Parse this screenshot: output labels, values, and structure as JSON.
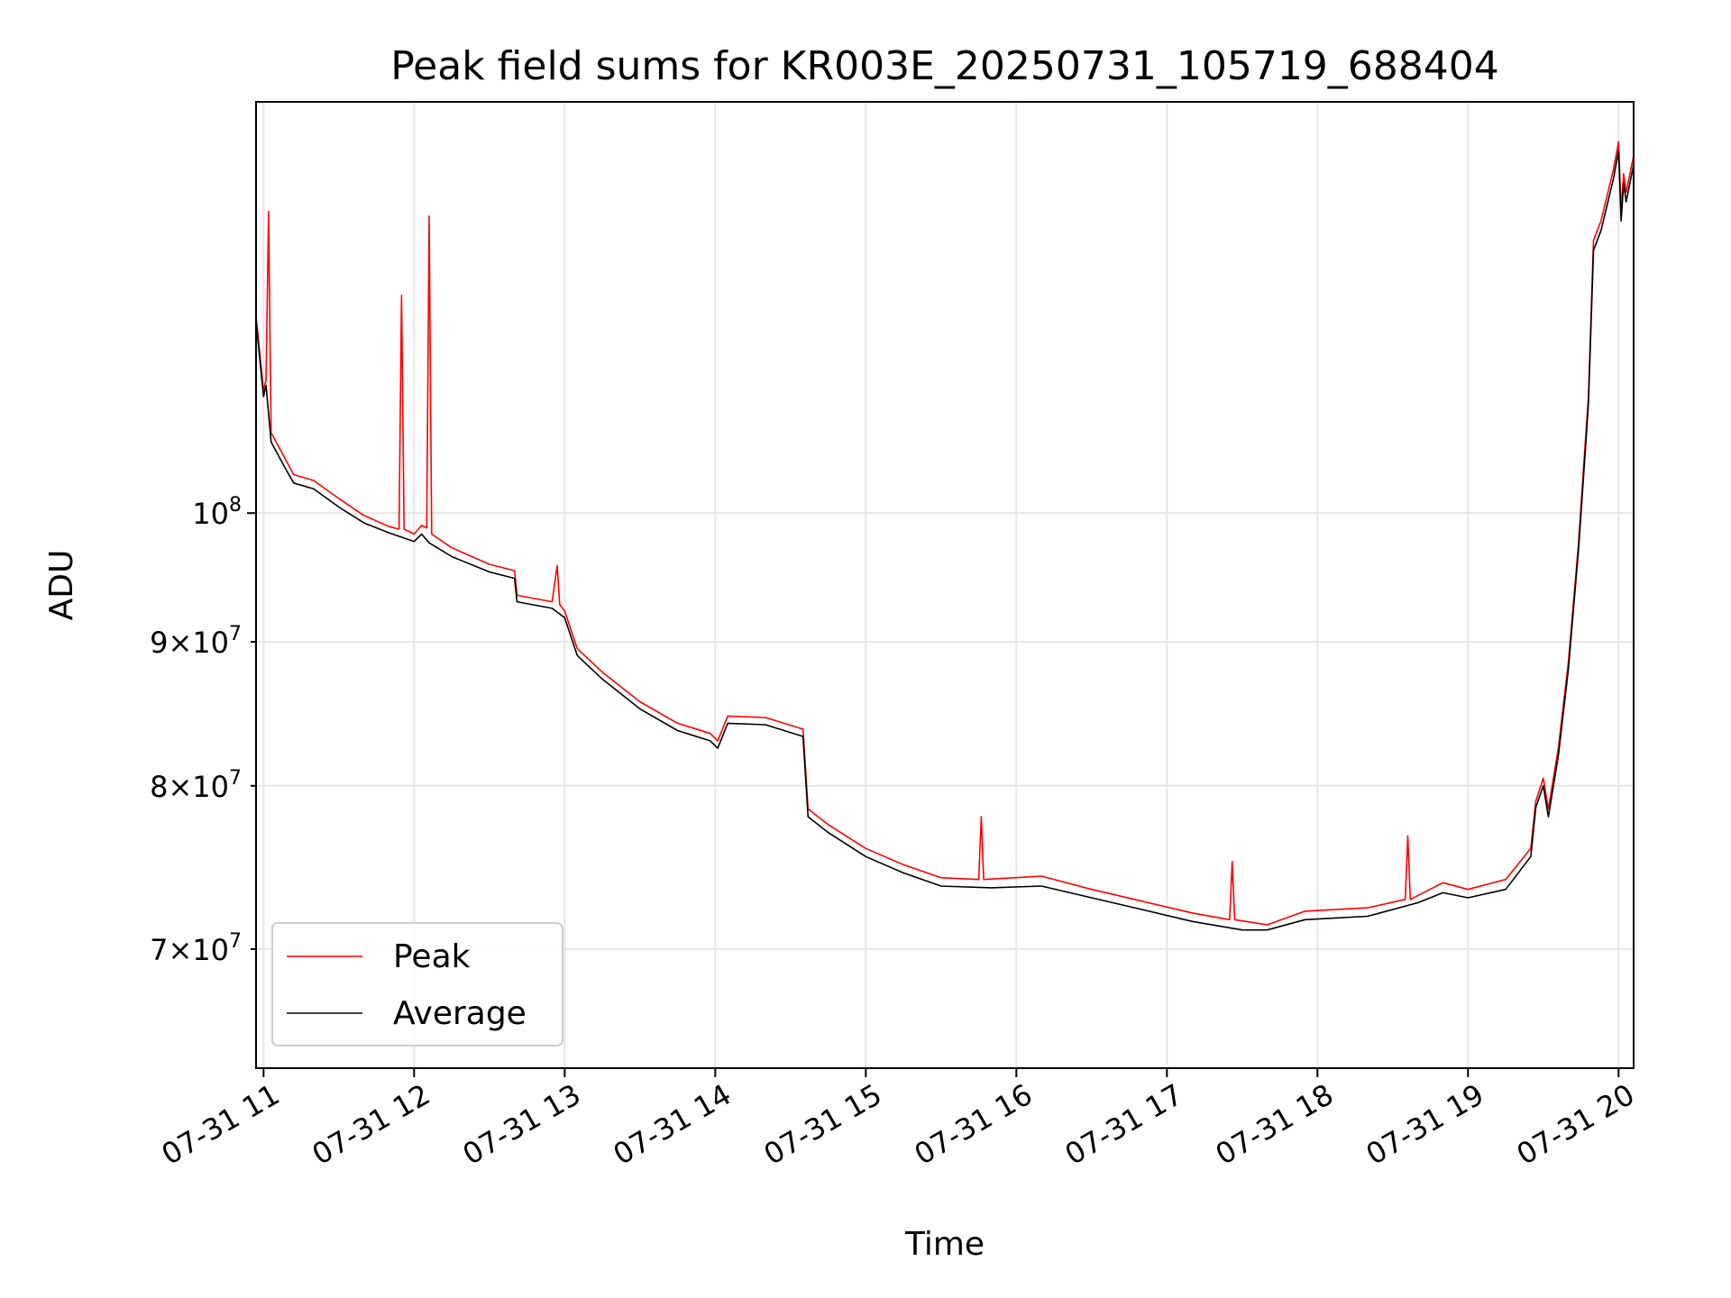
{
  "chart_data": {
    "type": "line",
    "title": "Peak field sums for KR003E_20250731_105719_688404",
    "xlabel": "Time",
    "ylabel": "ADU",
    "y_scale": "log",
    "ylim": [
      63500000,
      140000000
    ],
    "xlim": [
      "07-31 10:57",
      "07-31 20:06"
    ],
    "grid": true,
    "legend_position": "lower-left",
    "x_ticks": [
      {
        "t": "07-31 11:00",
        "label": "07-31 11"
      },
      {
        "t": "07-31 12:00",
        "label": "07-31 12"
      },
      {
        "t": "07-31 13:00",
        "label": "07-31 13"
      },
      {
        "t": "07-31 14:00",
        "label": "07-31 14"
      },
      {
        "t": "07-31 15:00",
        "label": "07-31 15"
      },
      {
        "t": "07-31 16:00",
        "label": "07-31 16"
      },
      {
        "t": "07-31 17:00",
        "label": "07-31 17"
      },
      {
        "t": "07-31 18:00",
        "label": "07-31 18"
      },
      {
        "t": "07-31 19:00",
        "label": "07-31 19"
      },
      {
        "t": "07-31 20:00",
        "label": "07-31 20"
      }
    ],
    "y_ticks": [
      {
        "v": 70000000,
        "mant": "7",
        "exp": "7",
        "major": false
      },
      {
        "v": 80000000,
        "mant": "8",
        "exp": "7",
        "major": false
      },
      {
        "v": 90000000,
        "mant": "9",
        "exp": "7",
        "major": false
      },
      {
        "v": 100000000,
        "mant": "",
        "exp": "8",
        "major": true
      }
    ],
    "series": [
      {
        "name": "Average",
        "color": "#000000",
        "points": [
          [
            "07-31 10:57",
            117000000
          ],
          [
            "07-31 11:00",
            110000000
          ],
          [
            "07-31 11:01",
            111000000
          ],
          [
            "07-31 11:03",
            106000000
          ],
          [
            "07-31 11:08",
            104000000
          ],
          [
            "07-31 11:12",
            102500000
          ],
          [
            "07-31 11:20",
            102000000
          ],
          [
            "07-31 11:30",
            100500000
          ],
          [
            "07-31 11:40",
            99200000
          ],
          [
            "07-31 11:50",
            98400000
          ],
          [
            "07-31 12:00",
            97700000
          ],
          [
            "07-31 12:03",
            98300000
          ],
          [
            "07-31 12:06",
            97600000
          ],
          [
            "07-31 12:15",
            96500000
          ],
          [
            "07-31 12:30",
            95300000
          ],
          [
            "07-31 12:40",
            94800000
          ],
          [
            "07-31 12:41",
            93000000
          ],
          [
            "07-31 12:55",
            92500000
          ],
          [
            "07-31 13:00",
            91800000
          ],
          [
            "07-31 13:05",
            89000000
          ],
          [
            "07-31 13:15",
            87300000
          ],
          [
            "07-31 13:30",
            85200000
          ],
          [
            "07-31 13:45",
            83700000
          ],
          [
            "07-31 13:58",
            83000000
          ],
          [
            "07-31 14:01",
            82500000
          ],
          [
            "07-31 14:05",
            84200000
          ],
          [
            "07-31 14:20",
            84100000
          ],
          [
            "07-31 14:35",
            83300000
          ],
          [
            "07-31 14:37",
            78000000
          ],
          [
            "07-31 14:45",
            77000000
          ],
          [
            "07-31 15:00",
            75500000
          ],
          [
            "07-31 15:15",
            74500000
          ],
          [
            "07-31 15:30",
            73700000
          ],
          [
            "07-31 15:50",
            73600000
          ],
          [
            "07-31 16:10",
            73700000
          ],
          [
            "07-31 16:30",
            73000000
          ],
          [
            "07-31 16:50",
            72300000
          ],
          [
            "07-31 17:10",
            71600000
          ],
          [
            "07-31 17:30",
            71100000
          ],
          [
            "07-31 17:40",
            71100000
          ],
          [
            "07-31 17:55",
            71700000
          ],
          [
            "07-31 18:20",
            71900000
          ],
          [
            "07-31 18:40",
            72700000
          ],
          [
            "07-31 18:50",
            73300000
          ],
          [
            "07-31 19:00",
            73000000
          ],
          [
            "07-31 19:15",
            73500000
          ],
          [
            "07-31 19:25",
            75500000
          ],
          [
            "07-31 19:27",
            78600000
          ],
          [
            "07-31 19:30",
            80000000
          ],
          [
            "07-31 19:32",
            78000000
          ],
          [
            "07-31 19:36",
            82000000
          ],
          [
            "07-31 19:40",
            88000000
          ],
          [
            "07-31 19:44",
            97000000
          ],
          [
            "07-31 19:47",
            106000000
          ],
          [
            "07-31 19:48",
            109500000
          ],
          [
            "07-31 19:50",
            124000000
          ],
          [
            "07-31 19:53",
            126000000
          ],
          [
            "07-31 19:58",
            131500000
          ],
          [
            "07-31 20:00",
            134500000
          ],
          [
            "07-31 20:01",
            127000000
          ],
          [
            "07-31 20:02",
            131000000
          ],
          [
            "07-31 20:03",
            129000000
          ],
          [
            "07-31 20:06",
            133000000
          ]
        ]
      },
      {
        "name": "Peak",
        "color": "#ff0000",
        "points": [
          [
            "07-31 10:57",
            117500000
          ],
          [
            "07-31 11:00",
            110500000
          ],
          [
            "07-31 11:01",
            111500000
          ],
          [
            "07-31 11:02",
            128000000
          ],
          [
            "07-31 11:03",
            106800000
          ],
          [
            "07-31 11:08",
            104800000
          ],
          [
            "07-31 11:12",
            103200000
          ],
          [
            "07-31 11:20",
            102700000
          ],
          [
            "07-31 11:30",
            101200000
          ],
          [
            "07-31 11:40",
            99800000
          ],
          [
            "07-31 11:50",
            98900000
          ],
          [
            "07-31 11:54",
            98700000
          ],
          [
            "07-31 11:55",
            119500000
          ],
          [
            "07-31 11:56",
            98700000
          ],
          [
            "07-31 12:00",
            98300000
          ],
          [
            "07-31 12:03",
            99000000
          ],
          [
            "07-31 12:05",
            98800000
          ],
          [
            "07-31 12:06",
            127500000
          ],
          [
            "07-31 12:07",
            98300000
          ],
          [
            "07-31 12:15",
            97200000
          ],
          [
            "07-31 12:30",
            95900000
          ],
          [
            "07-31 12:40",
            95400000
          ],
          [
            "07-31 12:41",
            93500000
          ],
          [
            "07-31 12:55",
            93000000
          ],
          [
            "07-31 12:57",
            95800000
          ],
          [
            "07-31 12:58",
            92800000
          ],
          [
            "07-31 13:00",
            92300000
          ],
          [
            "07-31 13:05",
            89500000
          ],
          [
            "07-31 13:15",
            87800000
          ],
          [
            "07-31 13:30",
            85700000
          ],
          [
            "07-31 13:45",
            84200000
          ],
          [
            "07-31 13:58",
            83500000
          ],
          [
            "07-31 14:01",
            83000000
          ],
          [
            "07-31 14:05",
            84700000
          ],
          [
            "07-31 14:20",
            84600000
          ],
          [
            "07-31 14:35",
            83800000
          ],
          [
            "07-31 14:37",
            78500000
          ],
          [
            "07-31 14:45",
            77500000
          ],
          [
            "07-31 15:00",
            76000000
          ],
          [
            "07-31 15:15",
            75000000
          ],
          [
            "07-31 15:30",
            74200000
          ],
          [
            "07-31 15:45",
            74100000
          ],
          [
            "07-31 15:46",
            78000000
          ],
          [
            "07-31 15:47",
            74100000
          ],
          [
            "07-31 16:10",
            74300000
          ],
          [
            "07-31 16:30",
            73500000
          ],
          [
            "07-31 16:50",
            72800000
          ],
          [
            "07-31 17:10",
            72100000
          ],
          [
            "07-31 17:25",
            71700000
          ],
          [
            "07-31 17:26",
            75200000
          ],
          [
            "07-31 17:27",
            71700000
          ],
          [
            "07-31 17:40",
            71400000
          ],
          [
            "07-31 17:55",
            72200000
          ],
          [
            "07-31 18:20",
            72400000
          ],
          [
            "07-31 18:35",
            72900000
          ],
          [
            "07-31 18:36",
            76800000
          ],
          [
            "07-31 18:37",
            72900000
          ],
          [
            "07-31 18:50",
            73900000
          ],
          [
            "07-31 19:00",
            73500000
          ],
          [
            "07-31 19:15",
            74100000
          ],
          [
            "07-31 19:25",
            76000000
          ],
          [
            "07-31 19:27",
            79000000
          ],
          [
            "07-31 19:30",
            80500000
          ],
          [
            "07-31 19:32",
            78500000
          ],
          [
            "07-31 19:36",
            82500000
          ],
          [
            "07-31 19:40",
            88500000
          ],
          [
            "07-31 19:44",
            97500000
          ],
          [
            "07-31 19:47",
            106800000
          ],
          [
            "07-31 19:48",
            110000000
          ],
          [
            "07-31 19:50",
            125000000
          ],
          [
            "07-31 19:53",
            127000000
          ],
          [
            "07-31 19:58",
            132500000
          ],
          [
            "07-31 20:00",
            135500000
          ],
          [
            "07-31 20:01",
            128000000
          ],
          [
            "07-31 20:02",
            132000000
          ],
          [
            "07-31 20:03",
            130000000
          ],
          [
            "07-31 20:06",
            134000000
          ]
        ]
      }
    ],
    "legend": [
      {
        "name": "Peak",
        "color": "#ff0000"
      },
      {
        "name": "Average",
        "color": "#000000"
      }
    ]
  }
}
